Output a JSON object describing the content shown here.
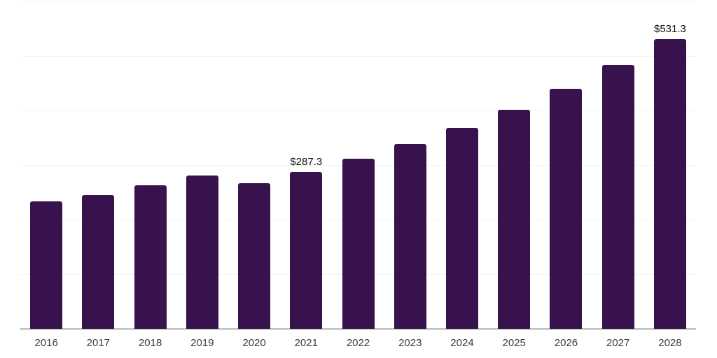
{
  "chart_data": {
    "type": "bar",
    "title": "",
    "xlabel": "",
    "ylabel": "",
    "categories": [
      "2016",
      "2017",
      "2018",
      "2019",
      "2020",
      "2021",
      "2022",
      "2023",
      "2024",
      "2025",
      "2026",
      "2027",
      "2028"
    ],
    "values": [
      233.3,
      245.3,
      263.2,
      280.4,
      267.1,
      287.3,
      311.9,
      338.5,
      368.0,
      400.9,
      439.4,
      483.3,
      531.3
    ],
    "data_labels": [
      "",
      "",
      "",
      "",
      "",
      "$287.3",
      "",
      "",
      "",
      "",
      "",
      "",
      "$531.3"
    ],
    "ylim": [
      0,
      600
    ],
    "gridline_step": 100,
    "grid": "horizontal",
    "legend": "none"
  },
  "colors": {
    "bar": "#38124c",
    "gridline": "#f2f2f2",
    "axis_line": "#3c3c3c",
    "data_label": "#111111",
    "tick_label": "#3d3d3d",
    "background": "#ffffff"
  }
}
